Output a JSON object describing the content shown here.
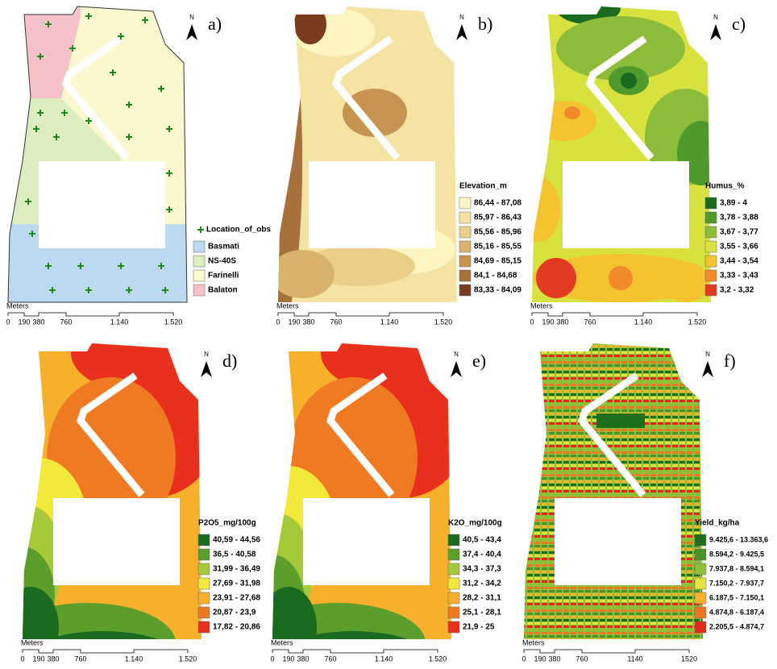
{
  "panels": [
    {
      "label": "a)",
      "north": "N",
      "legend": {
        "title": "Location_of_obs",
        "items": [
          {
            "label": "Basmati",
            "color": "#bcd9f0"
          },
          {
            "label": "NS-40S",
            "color": "#dcedc0"
          },
          {
            "label": "Farinelli",
            "color": "#fbf7cf"
          },
          {
            "label": "Balaton",
            "color": "#f4c2c8"
          }
        ]
      },
      "scale": {
        "unit": "Meters",
        "ticks": [
          "0",
          "190",
          "380",
          "760",
          "1.140",
          "1.520"
        ]
      }
    },
    {
      "label": "b)",
      "north": "N",
      "legend": {
        "title": "Elevation_m",
        "items": [
          {
            "label": "86,44 - 87,08",
            "color": "#fdf6c2"
          },
          {
            "label": "85,97 - 86,43",
            "color": "#f5e3a4"
          },
          {
            "label": "85,56 - 85,96",
            "color": "#ebcf88"
          },
          {
            "label": "85,16 - 85,55",
            "color": "#d9b36c"
          },
          {
            "label": "84,69 - 85,15",
            "color": "#c79450"
          },
          {
            "label": "84,1 - 84,68",
            "color": "#a8703a"
          },
          {
            "label": "83,33 - 84,09",
            "color": "#7a3c1e"
          }
        ]
      },
      "scale": {
        "unit": "Meters",
        "ticks": [
          "0",
          "190",
          "380",
          "760",
          "1.140",
          "1.520"
        ]
      }
    },
    {
      "label": "c)",
      "north": "N",
      "legend": {
        "title": "Humus_%",
        "items": [
          {
            "label": "3,89 - 4",
            "color": "#1a6b1f"
          },
          {
            "label": "3,78 - 3,88",
            "color": "#4f9a2b"
          },
          {
            "label": "3,67 - 3,77",
            "color": "#8dbb3a"
          },
          {
            "label": "3,55 - 3,66",
            "color": "#d8e23e"
          },
          {
            "label": "3,44 - 3,54",
            "color": "#f5c330"
          },
          {
            "label": "3,33 - 3,43",
            "color": "#f08a2a"
          },
          {
            "label": "3,2 - 3,32",
            "color": "#e33a22"
          }
        ]
      },
      "scale": {
        "unit": "Meters",
        "ticks": [
          "0",
          "190",
          "380",
          "760",
          "1.140",
          "1.520"
        ]
      }
    },
    {
      "label": "d)",
      "north": "N",
      "legend": {
        "title": "P2O5_mg/100g",
        "items": [
          {
            "label": "40,59 - 44,56",
            "color": "#1a6b1f"
          },
          {
            "label": "36,5 - 40,58",
            "color": "#5b9e2c"
          },
          {
            "label": "31,99 - 36,49",
            "color": "#a6c93a"
          },
          {
            "label": "27,69 - 31,98",
            "color": "#f2e93a"
          },
          {
            "label": "23,91 - 27,68",
            "color": "#f6b02c"
          },
          {
            "label": "20,87 - 23,9",
            "color": "#f07a22"
          },
          {
            "label": "17,82 - 20,86",
            "color": "#e8301c"
          }
        ]
      },
      "scale": {
        "unit": "Meters",
        "ticks": [
          "0",
          "190",
          "380",
          "760",
          "1.140",
          "1.520"
        ]
      }
    },
    {
      "label": "e)",
      "north": "N",
      "legend": {
        "title": "K2O_mg/100g",
        "items": [
          {
            "label": "40,5 - 43,4",
            "color": "#1a6b1f"
          },
          {
            "label": "37,4 - 40,4",
            "color": "#5b9e2c"
          },
          {
            "label": "34,3 - 37,3",
            "color": "#a6c93a"
          },
          {
            "label": "31,2 - 34,2",
            "color": "#f2e93a"
          },
          {
            "label": "28,2 - 31,1",
            "color": "#f6b02c"
          },
          {
            "label": "25,1 - 28,1",
            "color": "#f07a22"
          },
          {
            "label": "21,9 - 25",
            "color": "#e8301c"
          }
        ]
      },
      "scale": {
        "unit": "Meters",
        "ticks": [
          "0",
          "190",
          "380",
          "760",
          "1.140",
          "1.520"
        ]
      }
    },
    {
      "label": "f)",
      "north": "N",
      "legend": {
        "title": "Yield_kg/ha",
        "items": [
          {
            "label": "9.425,6 - 13.363,6",
            "color": "#1f6e1e"
          },
          {
            "label": "8.594,2 - 9.425,5",
            "color": "#4b922a"
          },
          {
            "label": "7.937,8 - 8.594,1",
            "color": "#8ebf39"
          },
          {
            "label": "7.150,2 - 7.937,7",
            "color": "#e6e33e"
          },
          {
            "label": "6.187,5 - 7.150,1",
            "color": "#f7b12c"
          },
          {
            "label": "4.874,8 - 6.187,4",
            "color": "#f27524"
          },
          {
            "label": "2.205,5 - 4.874,7",
            "color": "#e3271b"
          }
        ]
      },
      "scale": {
        "unit": "Meters",
        "ticks": [
          "0",
          "190",
          "380",
          "760",
          "1140",
          "1520"
        ]
      }
    }
  ]
}
